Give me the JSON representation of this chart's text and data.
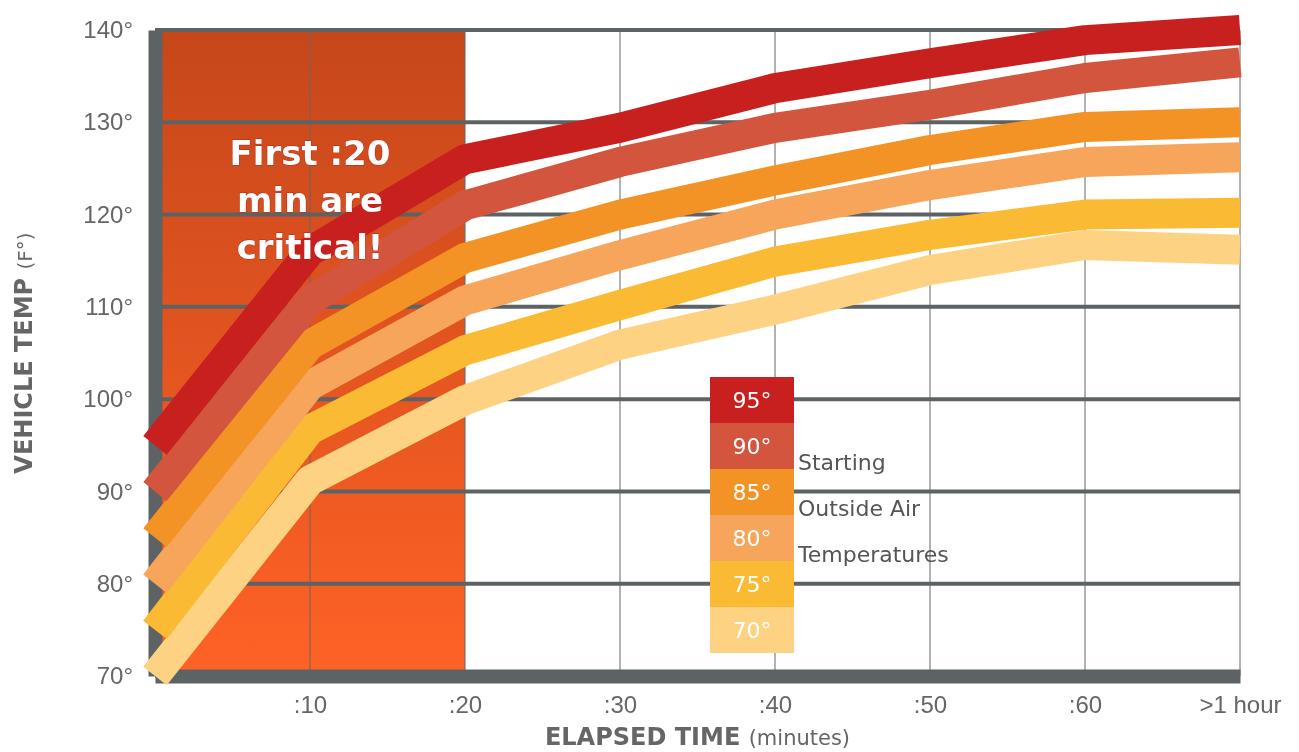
{
  "chart_data": {
    "type": "line",
    "xlabel": "ELAPSED TIME (minutes)",
    "ylabel": "VEHICLE TEMP (F°)",
    "legend_title": "Starting Outside Air Temperatures",
    "x": [
      0,
      10,
      20,
      30,
      40,
      50,
      60,
      70
    ],
    "xlim": [
      0,
      70
    ],
    "ylim": [
      70,
      140
    ],
    "xticks": [
      {
        "value": 10,
        "label": ":10"
      },
      {
        "value": 20,
        "label": ":20"
      },
      {
        "value": 30,
        "label": ":30"
      },
      {
        "value": 40,
        "label": ":40"
      },
      {
        "value": 50,
        "label": ":50"
      },
      {
        "value": 60,
        "label": ":60"
      },
      {
        "value": 70,
        "label": ">1 hour"
      }
    ],
    "yticks": [
      {
        "value": 70,
        "label": "70°"
      },
      {
        "value": 80,
        "label": "80°"
      },
      {
        "value": 90,
        "label": "90°"
      },
      {
        "value": 100,
        "label": "100°"
      },
      {
        "value": 110,
        "label": "110°"
      },
      {
        "value": 120,
        "label": "120°"
      },
      {
        "value": 130,
        "label": "130°"
      },
      {
        "value": 140,
        "label": "140°"
      }
    ],
    "series": [
      {
        "name": "95°",
        "color": "#c8201f",
        "values": [
          95,
          116,
          126,
          129.4,
          133.7,
          136.4,
          138.9,
          140
        ]
      },
      {
        "name": "90°",
        "color": "#d4553d",
        "values": [
          90,
          110.7,
          121,
          125.7,
          129.4,
          131.9,
          134.8,
          136.5
        ]
      },
      {
        "name": "85°",
        "color": "#f39325",
        "values": [
          85,
          105.9,
          115.3,
          120,
          123.7,
          127,
          129.5,
          130
        ]
      },
      {
        "name": "80°",
        "color": "#f6a55a",
        "values": [
          80,
          101.5,
          110.7,
          115.6,
          120,
          123.2,
          125.7,
          126.2
        ]
      },
      {
        "name": "75°",
        "color": "#fbba34",
        "values": [
          75,
          96.7,
          105.3,
          110.2,
          114.9,
          117.8,
          120,
          120.2
        ]
      },
      {
        "name": "70°",
        "color": "#fdd383",
        "values": [
          70,
          91.2,
          99.9,
          105.9,
          109.7,
          114,
          116.7,
          116.2
        ]
      }
    ],
    "bands": [
      {
        "axis": "x",
        "from": 0,
        "to": 20,
        "label": "First :20 min are critical!",
        "color": "#dc4f1e"
      }
    ],
    "grid": true,
    "legend": "bottom",
    "marker": "none",
    "line_style": "solid"
  }
}
